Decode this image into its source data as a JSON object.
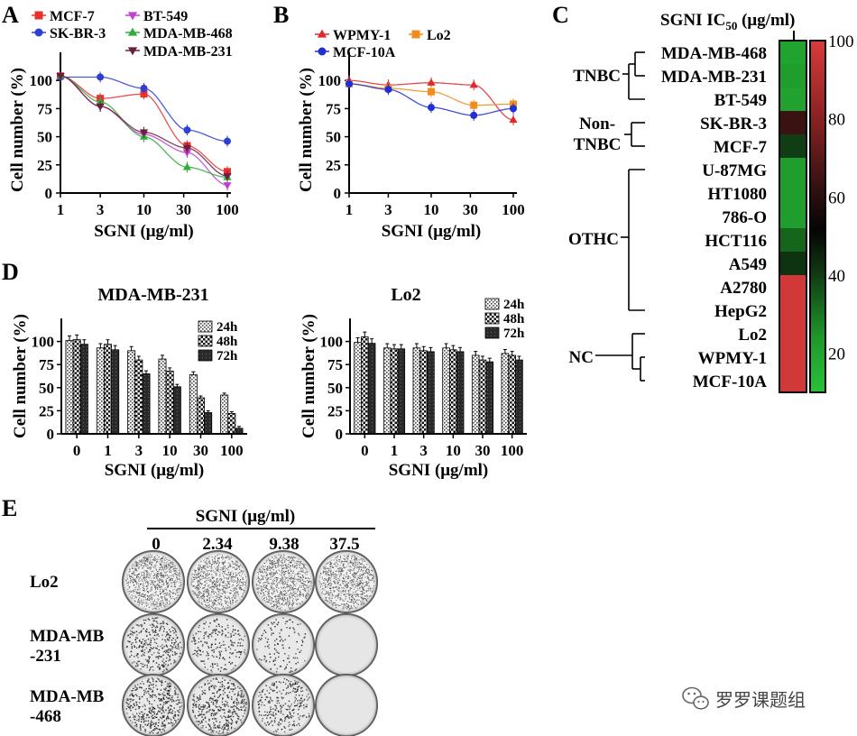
{
  "panels": {
    "A": "A",
    "B": "B",
    "C": "C",
    "D": "D",
    "E": "E"
  },
  "chart_data": [
    {
      "id": "A",
      "type": "line",
      "xscale": "log",
      "xlabel": "SGNI (μg/ml)",
      "ylabel": "Cell number (%)",
      "xticks": [
        1,
        3,
        10,
        30,
        100
      ],
      "xtick_labels": [
        "1",
        "3",
        "10",
        "30",
        "100"
      ],
      "yticks": [
        0,
        25,
        50,
        75,
        100
      ],
      "ytick_labels": [
        "0",
        "25",
        "50",
        "75",
        "100"
      ],
      "ylim": [
        0,
        125
      ],
      "series": [
        {
          "name": "MCF-7",
          "color": "#e8312f",
          "marker": "square",
          "x": [
            1,
            3,
            10,
            33,
            100
          ],
          "y": [
            104,
            84,
            88,
            42,
            19
          ]
        },
        {
          "name": "SK-BR-3",
          "color": "#2f3fd1",
          "marker": "circle",
          "x": [
            1,
            3,
            10,
            33,
            100
          ],
          "y": [
            103,
            103,
            93,
            56,
            46
          ]
        },
        {
          "name": "BT-549",
          "color": "#c040d0",
          "marker": "triangle-down",
          "x": [
            1,
            3,
            10,
            33,
            100
          ],
          "y": [
            104,
            77,
            52,
            36,
            7
          ]
        },
        {
          "name": "MDA-MB-468",
          "color": "#2fae3a",
          "marker": "triangle-up",
          "x": [
            1,
            3,
            10,
            33,
            100
          ],
          "y": [
            104,
            81,
            50,
            23,
            14
          ]
        },
        {
          "name": "MDA-MB-231",
          "color": "#6b1f3f",
          "marker": "triangle-down",
          "x": [
            1,
            3,
            10,
            33,
            100
          ],
          "y": [
            104,
            77,
            54,
            40,
            15
          ]
        }
      ]
    },
    {
      "id": "B",
      "type": "line",
      "xscale": "log",
      "xlabel": "SGNI (μg/ml)",
      "ylabel": "Cell number (%)",
      "xticks": [
        1,
        3,
        10,
        30,
        100
      ],
      "xtick_labels": [
        "1",
        "3",
        "10",
        "30",
        "100"
      ],
      "yticks": [
        0,
        25,
        50,
        75,
        100
      ],
      "ytick_labels": [
        "0",
        "25",
        "50",
        "75",
        "100"
      ],
      "ylim": [
        0,
        125
      ],
      "series": [
        {
          "name": "WPMY-1",
          "color": "#e02a2a",
          "marker": "triangle-up",
          "x": [
            1,
            3,
            10,
            33,
            100
          ],
          "y": [
            100,
            96,
            98,
            96,
            65
          ]
        },
        {
          "name": "Lo2",
          "color": "#f28c1e",
          "marker": "square",
          "x": [
            1,
            3,
            10,
            33,
            100
          ],
          "y": [
            97,
            93,
            90,
            78,
            79
          ]
        },
        {
          "name": "MCF-10A",
          "color": "#1f2fd6",
          "marker": "circle",
          "x": [
            1,
            3,
            10,
            33,
            100
          ],
          "y": [
            97,
            92,
            76,
            69,
            75
          ]
        }
      ]
    },
    {
      "id": "C",
      "type": "heatmap",
      "title": "SGNI  IC50 (μg/ml)",
      "title_main": "SGNI  IC",
      "title_sub": "50",
      "title_unit": " (μg/ml)",
      "colorbar_ticks": [
        "100",
        "80",
        "60",
        "40",
        "20"
      ],
      "colorbar_values": [
        100,
        80,
        60,
        40,
        20
      ],
      "colorbar_range": [
        10,
        100
      ],
      "rows": [
        {
          "label": "MDA-MB-468",
          "value": 20
        },
        {
          "label": "MDA-MB-231",
          "value": 22
        },
        {
          "label": "BT-549",
          "value": 21
        },
        {
          "label": "SK-BR-3",
          "value": 64
        },
        {
          "label": "MCF-7",
          "value": 40
        },
        {
          "label": "U-87MG",
          "value": 22
        },
        {
          "label": "HT1080",
          "value": 22
        },
        {
          "label": "786-O",
          "value": 22
        },
        {
          "label": "HCT116",
          "value": 33
        },
        {
          "label": "A549",
          "value": 42
        },
        {
          "label": "A2780",
          "value": 98
        },
        {
          "label": "HepG2",
          "value": 98
        },
        {
          "label": "Lo2",
          "value": 98
        },
        {
          "label": "WPMY-1",
          "value": 98
        },
        {
          "label": "MCF-10A",
          "value": 98
        }
      ],
      "groups": [
        {
          "label": "TNBC",
          "lines": [
            "TNBC"
          ]
        },
        {
          "label": "Non-TNBC",
          "lines": [
            "Non-",
            "TNBC"
          ]
        },
        {
          "label": "OTHC",
          "lines": [
            "OTHC"
          ]
        },
        {
          "label": "NC",
          "lines": [
            "NC"
          ]
        }
      ]
    },
    {
      "id": "D1",
      "type": "bar",
      "title": "MDA-MB-231",
      "xlabel": "SGNI (μg/ml)",
      "ylabel": "Cell number (%)",
      "categories": [
        "0",
        "1",
        "3",
        "10",
        "30",
        "100"
      ],
      "yticks": [
        "0",
        "25",
        "50",
        "75",
        "100"
      ],
      "ylim": [
        0,
        125
      ],
      "series": [
        {
          "name": "24h",
          "values": [
            101,
            93,
            90,
            81,
            64,
            42
          ]
        },
        {
          "name": "48h",
          "values": [
            102,
            97,
            80,
            68,
            39,
            22
          ]
        },
        {
          "name": "72h",
          "values": [
            97,
            91,
            65,
            51,
            23,
            6
          ]
        }
      ]
    },
    {
      "id": "D2",
      "type": "bar",
      "title": "Lo2",
      "xlabel": "SGNI (μg/ml)",
      "ylabel": "Cell number (%)",
      "categories": [
        "0",
        "1",
        "3",
        "10",
        "30",
        "100"
      ],
      "yticks": [
        "0",
        "25",
        "50",
        "75",
        "100"
      ],
      "ylim": [
        0,
        125
      ],
      "series": [
        {
          "name": "24h",
          "values": [
            99,
            93,
            93,
            93,
            85,
            87
          ]
        },
        {
          "name": "48h",
          "values": [
            105,
            92,
            90,
            91,
            80,
            85
          ]
        },
        {
          "name": "72h",
          "values": [
            98,
            92,
            89,
            89,
            78,
            80
          ]
        }
      ]
    }
  ],
  "panelE": {
    "header": "SGNI (μg/ml)",
    "concentrations": [
      "0",
      "2.34",
      "9.38",
      "37.5"
    ],
    "rows": [
      {
        "lines": [
          "Lo2"
        ],
        "density": [
          1.0,
          1.0,
          1.0,
          1.0
        ]
      },
      {
        "lines": [
          "MDA-MB",
          "-231"
        ],
        "density": [
          0.55,
          0.35,
          0.22,
          0.0
        ]
      },
      {
        "lines": [
          "MDA-MB",
          "-468"
        ],
        "density": [
          0.75,
          0.7,
          0.45,
          0.0
        ]
      }
    ]
  },
  "watermark": {
    "text": "罗罗课题组",
    "icon": "wechat-icon"
  }
}
